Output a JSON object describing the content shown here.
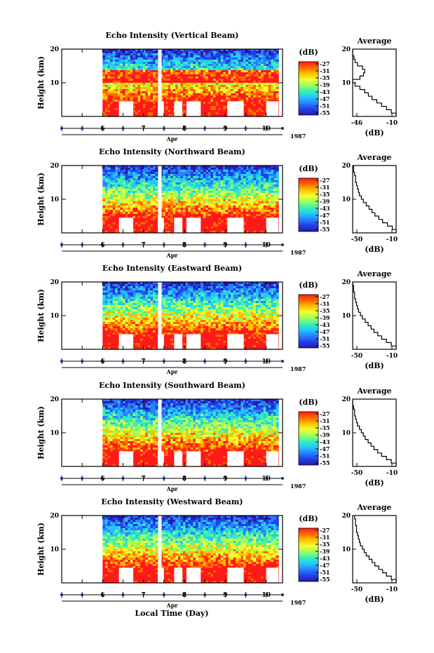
{
  "figure": {
    "xlabel": "Local Time (Day)",
    "month_label": "Apr",
    "year_label": "1987"
  },
  "colorbar": {
    "unit": "(dB)",
    "ticks": [
      "-27",
      "-31",
      "-35",
      "-39",
      "-43",
      "-47",
      "-51",
      "-55"
    ],
    "colors": [
      "#ff1a1a",
      "#ff6a00",
      "#ffc000",
      "#f0ff30",
      "#9cff60",
      "#38f0b0",
      "#20c8ff",
      "#2a80ff",
      "#2040e8",
      "#2a1aa8"
    ]
  },
  "chart_data": [
    {
      "type": "heatmap",
      "title": "Echo Intensity (Vertical Beam)",
      "ylabel": "Height (km)",
      "yticks": [
        "10",
        "20"
      ],
      "ylim": [
        0,
        20
      ],
      "xticks": [
        "6",
        "7",
        "8",
        "9",
        "10"
      ],
      "xlim": [
        5.0,
        10.4
      ],
      "data_x_range": [
        6.0,
        10.3
      ],
      "gap_day": 7.4,
      "profile": {
        "title": "Average",
        "xlabel": "(dB)",
        "xticks": [
          "-46",
          "-10"
        ],
        "yticks": [
          "10",
          "20"
        ],
        "xlim": [
          -46,
          -10
        ],
        "ylim": [
          0,
          20
        ],
        "points": [
          [
            -10,
            1
          ],
          [
            -14,
            2
          ],
          [
            -18,
            3
          ],
          [
            -22,
            4
          ],
          [
            -26,
            5
          ],
          [
            -30,
            6
          ],
          [
            -33,
            7
          ],
          [
            -36,
            8
          ],
          [
            -40,
            9
          ],
          [
            -44,
            10
          ],
          [
            -46,
            11
          ],
          [
            -40,
            12
          ],
          [
            -37,
            13
          ],
          [
            -36,
            14
          ],
          [
            -38,
            15
          ],
          [
            -42,
            16
          ],
          [
            -44,
            17
          ],
          [
            -45,
            18
          ],
          [
            -46,
            19
          ],
          [
            -46,
            20
          ]
        ]
      }
    },
    {
      "type": "heatmap",
      "title": "Echo Intensity (Northward Beam)",
      "ylabel": "Height (km)",
      "yticks": [
        "10",
        "20"
      ],
      "ylim": [
        0,
        20
      ],
      "xticks": [
        "6",
        "7",
        "8",
        "9",
        "10"
      ],
      "xlim": [
        5.0,
        10.4
      ],
      "data_x_range": [
        6.0,
        10.3
      ],
      "gap_day": 7.4,
      "profile": {
        "title": "Average",
        "xlabel": "(dB)",
        "xticks": [
          "-50",
          "-10"
        ],
        "yticks": [
          "10",
          "20"
        ],
        "xlim": [
          -55,
          -10
        ],
        "ylim": [
          0,
          20
        ],
        "points": [
          [
            -10,
            1
          ],
          [
            -14,
            2
          ],
          [
            -19,
            3
          ],
          [
            -24,
            4
          ],
          [
            -28,
            5
          ],
          [
            -32,
            6
          ],
          [
            -35,
            7
          ],
          [
            -38,
            8
          ],
          [
            -41,
            9
          ],
          [
            -44,
            10
          ],
          [
            -46,
            11
          ],
          [
            -48,
            12
          ],
          [
            -49,
            13
          ],
          [
            -50,
            14
          ],
          [
            -51,
            15
          ],
          [
            -52,
            16
          ],
          [
            -52,
            17
          ],
          [
            -53,
            18
          ],
          [
            -54,
            19
          ],
          [
            -54,
            20
          ]
        ]
      }
    },
    {
      "type": "heatmap",
      "title": "Echo Intensity (Eastward Beam)",
      "ylabel": "Height (km)",
      "yticks": [
        "10",
        "20"
      ],
      "ylim": [
        0,
        20
      ],
      "xticks": [
        "6",
        "7",
        "8",
        "9",
        "10"
      ],
      "xlim": [
        5.0,
        10.4
      ],
      "data_x_range": [
        6.0,
        10.3
      ],
      "gap_day": 7.4,
      "profile": {
        "title": "Average",
        "xlabel": "(dB)",
        "xticks": [
          "-50",
          "-10"
        ],
        "yticks": [
          "10",
          "20"
        ],
        "xlim": [
          -55,
          -10
        ],
        "ylim": [
          0,
          20
        ],
        "points": [
          [
            -10,
            1
          ],
          [
            -15,
            2
          ],
          [
            -20,
            3
          ],
          [
            -25,
            4
          ],
          [
            -29,
            5
          ],
          [
            -33,
            6
          ],
          [
            -36,
            7
          ],
          [
            -39,
            8
          ],
          [
            -42,
            9
          ],
          [
            -45,
            10
          ],
          [
            -47,
            11
          ],
          [
            -49,
            12
          ],
          [
            -50,
            13
          ],
          [
            -51,
            14
          ],
          [
            -52,
            15
          ],
          [
            -53,
            16
          ],
          [
            -53,
            17
          ],
          [
            -54,
            18
          ],
          [
            -54,
            19
          ],
          [
            -55,
            20
          ]
        ]
      }
    },
    {
      "type": "heatmap",
      "title": "Echo Intensity (Southward Beam)",
      "ylabel": "Height (km)",
      "yticks": [
        "10",
        "20"
      ],
      "ylim": [
        0,
        20
      ],
      "xticks": [
        "6",
        "7",
        "8",
        "9",
        "10"
      ],
      "xlim": [
        5.0,
        10.4
      ],
      "data_x_range": [
        6.0,
        10.3
      ],
      "gap_day": 7.4,
      "profile": {
        "title": "Average",
        "xlabel": "(dB)",
        "xticks": [
          "-50",
          "-10"
        ],
        "yticks": [
          "10",
          "20"
        ],
        "xlim": [
          -55,
          -10
        ],
        "ylim": [
          0,
          20
        ],
        "points": [
          [
            -10,
            1
          ],
          [
            -15,
            2
          ],
          [
            -20,
            3
          ],
          [
            -25,
            4
          ],
          [
            -29,
            5
          ],
          [
            -33,
            6
          ],
          [
            -36,
            7
          ],
          [
            -39,
            8
          ],
          [
            -42,
            9
          ],
          [
            -44,
            10
          ],
          [
            -46,
            11
          ],
          [
            -48,
            12
          ],
          [
            -50,
            13
          ],
          [
            -51,
            14
          ],
          [
            -52,
            15
          ],
          [
            -53,
            16
          ],
          [
            -53,
            17
          ],
          [
            -54,
            18
          ],
          [
            -55,
            19
          ],
          [
            -55,
            20
          ]
        ]
      }
    },
    {
      "type": "heatmap",
      "title": "Echo Intensity (Westward Beam)",
      "ylabel": "Height (km)",
      "yticks": [
        "10",
        "20"
      ],
      "ylim": [
        0,
        20
      ],
      "xticks": [
        "6",
        "7",
        "8",
        "9",
        "10"
      ],
      "xlim": [
        5.0,
        10.4
      ],
      "data_x_range": [
        6.0,
        10.3
      ],
      "gap_day": 7.4,
      "profile": {
        "title": "Average",
        "xlabel": "(dB)",
        "xticks": [
          "-50",
          "-10"
        ],
        "yticks": [
          "10",
          "20"
        ],
        "xlim": [
          -55,
          -10
        ],
        "ylim": [
          0,
          20
        ],
        "points": [
          [
            -10,
            1
          ],
          [
            -15,
            2
          ],
          [
            -20,
            3
          ],
          [
            -24,
            4
          ],
          [
            -28,
            5
          ],
          [
            -32,
            6
          ],
          [
            -35,
            7
          ],
          [
            -38,
            8
          ],
          [
            -41,
            9
          ],
          [
            -43,
            10
          ],
          [
            -45,
            11
          ],
          [
            -47,
            12
          ],
          [
            -48,
            13
          ],
          [
            -49,
            14
          ],
          [
            -50,
            15
          ],
          [
            -51,
            16
          ],
          [
            -51,
            17
          ],
          [
            -52,
            18
          ],
          [
            -52,
            19
          ],
          [
            -53,
            20
          ]
        ]
      }
    }
  ]
}
